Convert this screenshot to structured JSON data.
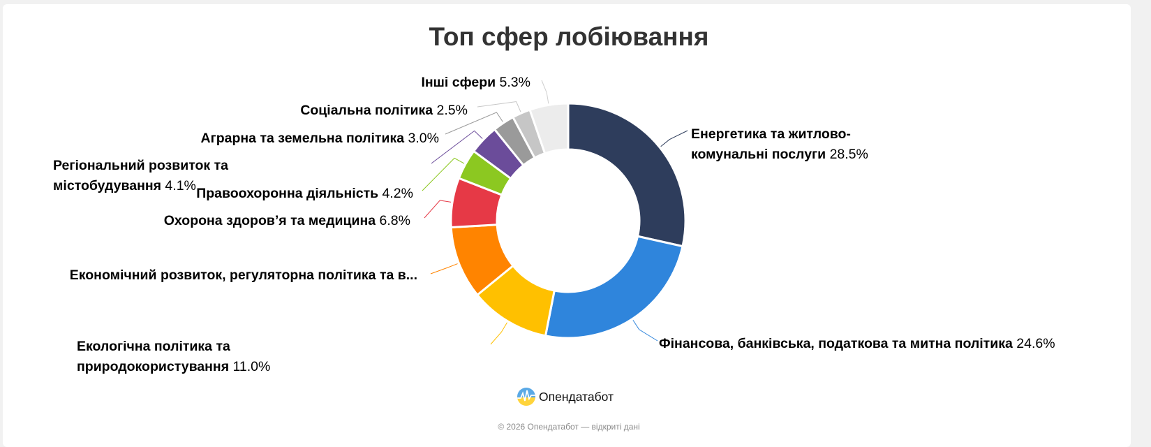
{
  "chart_data": {
    "type": "pie",
    "donut": true,
    "title": "Топ сфер лобіювання",
    "slices": [
      {
        "name": "Енергетика та житлово-комунальні послуги",
        "lines": [
          "Енергетика та житлово-",
          "комунальні послуги"
        ],
        "value": 28.5,
        "label": "28.5%",
        "color": "#2e3d5c"
      },
      {
        "name": "Фінансова, банківська, податкова та митна політика",
        "lines": [
          "Фінансова, банківська, податкова та митна політика"
        ],
        "value": 24.6,
        "label": "24.6%",
        "color": "#2f85dc"
      },
      {
        "name": "Екологічна політика та природокористування",
        "lines": [
          "Екологічна політика та",
          "природокористування"
        ],
        "value": 11.0,
        "label": "11.0%",
        "color": "#ffc000"
      },
      {
        "name": "Економічний розвиток, регуляторна політика та в...",
        "lines": [
          "Економічний розвиток, регуляторна політика та в..."
        ],
        "value": 10.0,
        "label": "",
        "color": "#ff8400"
      },
      {
        "name": "Охорона здоров’я та медицина",
        "lines": [
          "Охорона здоров’я та медицина"
        ],
        "value": 6.8,
        "label": "6.8%",
        "color": "#e63946"
      },
      {
        "name": "Правоохоронна діяльність",
        "lines": [
          "Правоохоронна діяльність"
        ],
        "value": 4.2,
        "label": "4.2%",
        "color": "#8cc821"
      },
      {
        "name": "Регіональний розвиток та містобудування",
        "lines": [
          "Регіональний розвиток та",
          "містобудування"
        ],
        "value": 4.1,
        "label": "4.1%",
        "color": "#6b4c9a"
      },
      {
        "name": "Аграрна та земельна політика",
        "lines": [
          "Аграрна та земельна політика"
        ],
        "value": 3.0,
        "label": "3.0%",
        "color": "#9a9a9a"
      },
      {
        "name": "Соціальна політика",
        "lines": [
          "Соціальна політика"
        ],
        "value": 2.5,
        "label": "2.5%",
        "color": "#c6c6c6"
      },
      {
        "name": "Інші сфери",
        "lines": [
          "Інші сфери"
        ],
        "value": 5.3,
        "label": "5.3%",
        "color": "#ececec"
      }
    ]
  },
  "branding": {
    "logo_text": "Опендатабот",
    "footer": "© 2026 Опендатабот — відкриті дані"
  }
}
